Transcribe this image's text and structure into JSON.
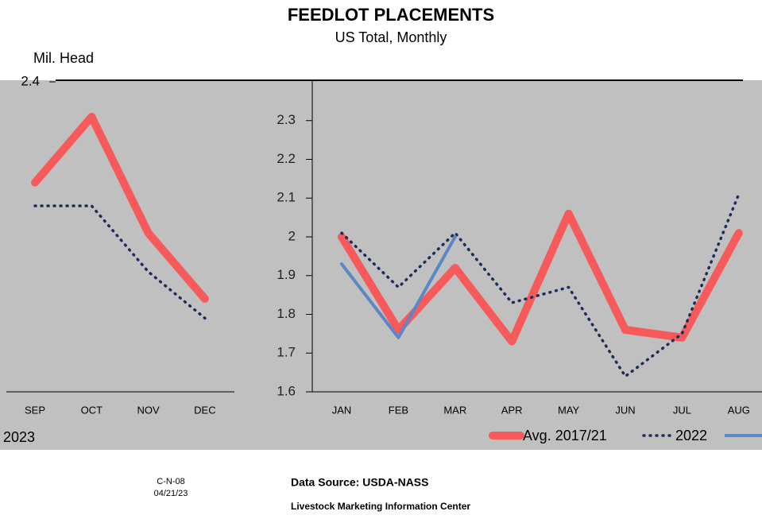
{
  "header": {
    "title": "FEEDLOT PLACEMENTS",
    "subtitle": "US Total, Monthly",
    "y_label": "Mil. Head"
  },
  "chart_data": [
    {
      "type": "line",
      "categories": [
        "SEP",
        "OCT",
        "NOV",
        "DEC"
      ],
      "series": [
        {
          "color": "#f75a5a",
          "values": [
            2.14,
            2.31,
            2.01,
            1.84
          ]
        },
        {
          "color": "#1f2d5c",
          "values": [
            2.08,
            2.08,
            1.91,
            1.79
          ]
        }
      ],
      "ylim": [
        1.6,
        2.4
      ],
      "yticks": [
        2.4
      ]
    },
    {
      "type": "line",
      "categories": [
        "JAN",
        "FEB",
        "MAR",
        "APR",
        "MAY",
        "JUN",
        "JUL",
        "AUG"
      ],
      "series": [
        {
          "name": "Avg. 2017/21",
          "color": "#f75a5a",
          "values": [
            2.0,
            1.76,
            1.92,
            1.73,
            2.06,
            1.76,
            1.74,
            2.01
          ]
        },
        {
          "name": "2022",
          "color": "#1f2d5c",
          "values": [
            2.01,
            1.87,
            2.01,
            1.83,
            1.87,
            1.64,
            1.75,
            2.11
          ]
        },
        {
          "name": "2023",
          "color": "#5b87c5",
          "values": [
            1.93,
            1.74,
            2.0,
            null,
            null,
            null,
            null,
            null
          ]
        }
      ],
      "ylim": [
        1.6,
        2.4
      ],
      "yticks": [
        1.6,
        1.7,
        1.8,
        1.9,
        2,
        2.1,
        2.2,
        2.3
      ]
    }
  ],
  "footer": {
    "code": "C-N-08",
    "date": "04/21/23",
    "source": "Data Source:  USDA-NASS",
    "center": "Livestock Marketing Information Center"
  }
}
